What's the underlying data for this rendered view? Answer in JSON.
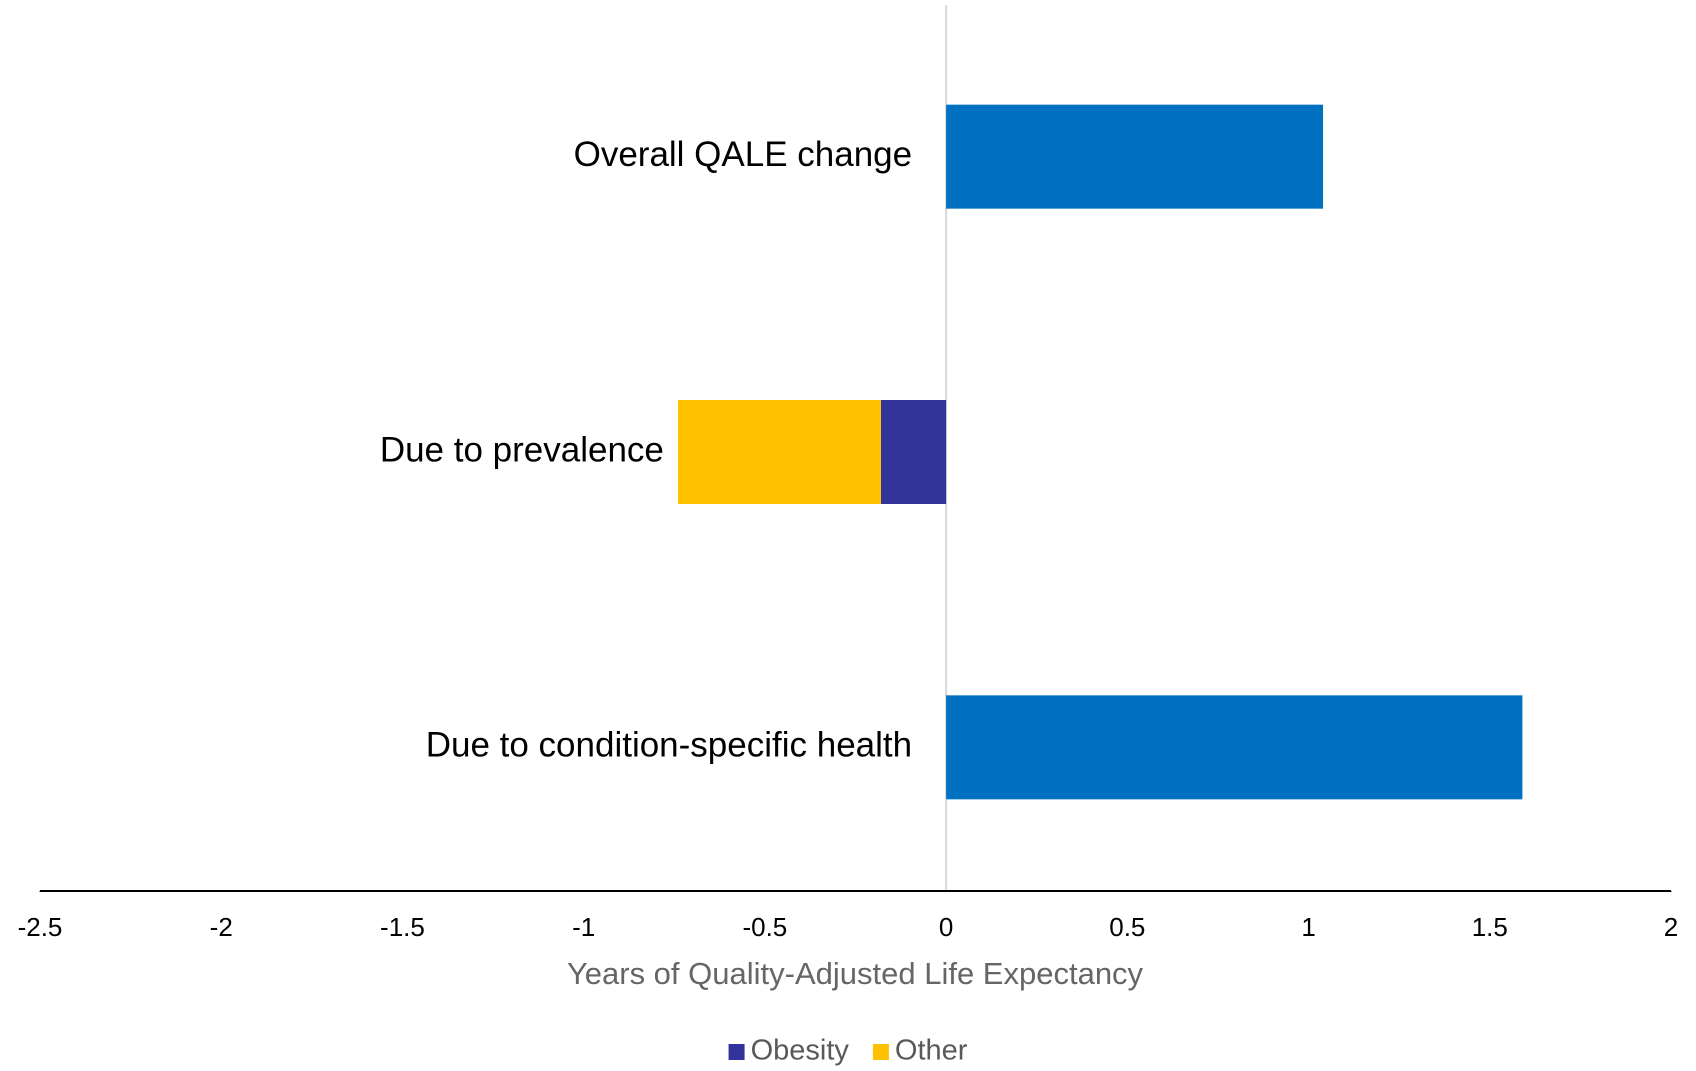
{
  "chart_data": {
    "type": "bar",
    "orientation": "horizontal",
    "stacked": true,
    "x_label": "Years of Quality-Adjusted Life Expectancy",
    "categories": [
      "Overall QALE change",
      "Due to prevalence",
      "Due to condition-specific health"
    ],
    "series": [
      {
        "color": "#0070c0",
        "values": [
          1.04,
          null,
          1.59
        ]
      },
      {
        "name": "Obesity",
        "color": "#333399",
        "values": [
          null,
          -0.18,
          null
        ]
      },
      {
        "name": "Other",
        "color": "#ffc000",
        "values": [
          null,
          -0.56,
          null
        ]
      }
    ],
    "xlim": [
      -2.5,
      2
    ],
    "xticks": [
      -2.5,
      -2,
      -1.5,
      -1,
      -0.5,
      0,
      0.5,
      1,
      1.5,
      2
    ],
    "legend": "bottom"
  }
}
